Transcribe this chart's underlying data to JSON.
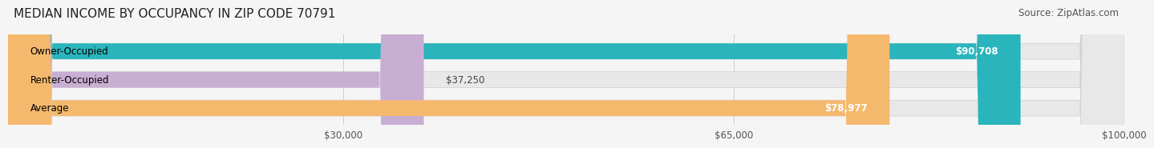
{
  "title": "MEDIAN INCOME BY OCCUPANCY IN ZIP CODE 70791",
  "source": "Source: ZipAtlas.com",
  "categories": [
    "Owner-Occupied",
    "Renter-Occupied",
    "Average"
  ],
  "values": [
    90708,
    37250,
    78977
  ],
  "bar_colors": [
    "#2ab5bc",
    "#c9aed4",
    "#f5b96e"
  ],
  "value_labels": [
    "$90,708",
    "$37,250",
    "$78,977"
  ],
  "xlim": [
    0,
    100000
  ],
  "xticks": [
    30000,
    65000,
    100000
  ],
  "xtick_labels": [
    "$30,000",
    "$65,000",
    "$100,000"
  ],
  "background_color": "#f5f5f5",
  "bar_background_color": "#e8e8e8",
  "title_fontsize": 11,
  "source_fontsize": 8.5,
  "label_fontsize": 8.5,
  "bar_height": 0.55
}
